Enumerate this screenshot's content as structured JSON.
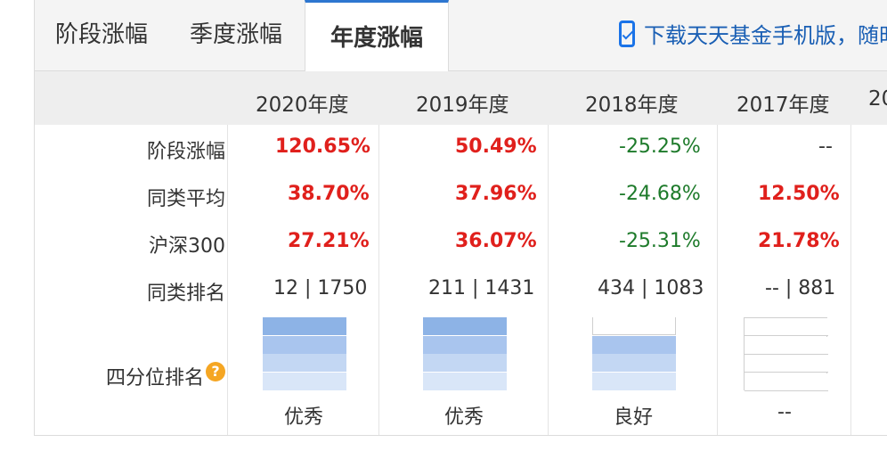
{
  "tabs": [
    {
      "label": "阶段涨幅",
      "active": false
    },
    {
      "label": "季度涨幅",
      "active": false
    },
    {
      "label": "年度涨幅",
      "active": true
    }
  ],
  "download": {
    "text": "下载天天基金手机版，随时",
    "icon": "phone-download-icon"
  },
  "table": {
    "years": [
      "2020年度",
      "2019年度",
      "2018年度",
      "2017年度",
      "20"
    ],
    "row_labels": {
      "stage": "阶段涨幅",
      "peer_avg": "同类平均",
      "hs300": "沪深300",
      "peer_rank": "同类排名",
      "quartile": "四分位排名"
    },
    "help_icon": {
      "name": "question-help-icon",
      "glyph": "?"
    },
    "stage": [
      "120.65%",
      "50.49%",
      "-25.25%",
      "--"
    ],
    "peer_avg": [
      "38.70%",
      "37.96%",
      "-24.68%",
      "12.50%"
    ],
    "hs300": [
      "27.21%",
      "36.07%",
      "-25.31%",
      "21.78%"
    ],
    "peer_rank": [
      "12 | 1750",
      "211 | 1431",
      "434 | 1083",
      "-- | 881"
    ],
    "quartile_text": [
      "优秀",
      "优秀",
      "良好",
      "--"
    ],
    "quartile_level": [
      4,
      4,
      3,
      0
    ]
  },
  "colors": {
    "up": "#e0201c",
    "down": "#1d7a2a",
    "accent": "#2d76d0"
  }
}
